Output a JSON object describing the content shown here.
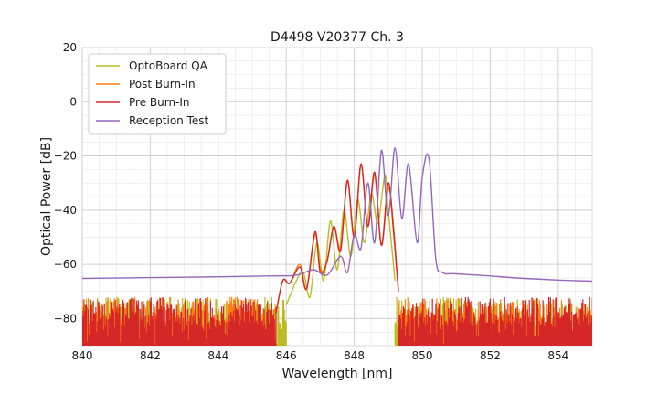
{
  "chart_data": {
    "type": "line",
    "title": "D4498 V20377 Ch. 3",
    "xlabel": "Wavelength [nm]",
    "ylabel": "Optical Power [dB]",
    "xlim": [
      840,
      855
    ],
    "ylim": [
      -90,
      20
    ],
    "xticks": [
      840,
      842,
      844,
      846,
      848,
      850,
      852,
      854
    ],
    "yticks": [
      20,
      0,
      -20,
      -40,
      -60,
      -80
    ],
    "grid": true,
    "legend_position": "top-left",
    "noise_floor": [
      -90,
      -72
    ],
    "series": [
      {
        "name": "OptoBoard QA",
        "color": "#bcbd22",
        "noise_range": [
          [
            840,
            846.0
          ],
          [
            849.2,
            855
          ]
        ],
        "points": [
          [
            846.0,
            -75
          ],
          [
            846.3,
            -66
          ],
          [
            846.5,
            -63
          ],
          [
            846.7,
            -72
          ],
          [
            846.9,
            -52
          ],
          [
            847.1,
            -66
          ],
          [
            847.3,
            -44
          ],
          [
            847.5,
            -62
          ],
          [
            847.7,
            -40
          ],
          [
            847.9,
            -57
          ],
          [
            848.1,
            -36
          ],
          [
            848.3,
            -52
          ],
          [
            848.5,
            -34
          ],
          [
            848.7,
            -45
          ],
          [
            848.9,
            -27
          ],
          [
            849.0,
            -40
          ],
          [
            849.2,
            -66
          ]
        ]
      },
      {
        "name": "Post Burn-In",
        "color": "#ff7f0e",
        "noise_range": [
          [
            840,
            845.7
          ],
          [
            849.3,
            855
          ]
        ],
        "points": [
          [
            845.7,
            -78
          ],
          [
            845.9,
            -66
          ],
          [
            846.1,
            -67
          ],
          [
            846.4,
            -60
          ],
          [
            846.6,
            -69
          ],
          [
            846.85,
            -49
          ],
          [
            847.0,
            -62
          ],
          [
            847.2,
            -59
          ],
          [
            847.4,
            -46
          ],
          [
            847.6,
            -54
          ],
          [
            847.8,
            -29
          ],
          [
            848.0,
            -50
          ],
          [
            848.2,
            -23
          ],
          [
            848.4,
            -46
          ],
          [
            848.6,
            -27
          ],
          [
            848.8,
            -53
          ],
          [
            849.0,
            -32
          ],
          [
            849.15,
            -45
          ],
          [
            849.3,
            -70
          ]
        ]
      },
      {
        "name": "Pre Burn-In",
        "color": "#d62728",
        "noise_range": [
          [
            840,
            845.7
          ],
          [
            849.3,
            855
          ]
        ],
        "points": [
          [
            845.7,
            -78
          ],
          [
            845.9,
            -66
          ],
          [
            846.1,
            -67
          ],
          [
            846.4,
            -61
          ],
          [
            846.6,
            -69
          ],
          [
            846.85,
            -48
          ],
          [
            847.0,
            -63
          ],
          [
            847.2,
            -59
          ],
          [
            847.4,
            -46
          ],
          [
            847.6,
            -55
          ],
          [
            847.8,
            -29
          ],
          [
            848.0,
            -50
          ],
          [
            848.2,
            -23
          ],
          [
            848.4,
            -46
          ],
          [
            848.6,
            -26
          ],
          [
            848.8,
            -53
          ],
          [
            849.0,
            -30
          ],
          [
            849.15,
            -47
          ],
          [
            849.3,
            -70
          ]
        ]
      },
      {
        "name": "Reception Test",
        "color": "#9467bd",
        "noise_range": [],
        "points": [
          [
            840,
            -65.2
          ],
          [
            842,
            -64.9
          ],
          [
            844,
            -64.6
          ],
          [
            845.5,
            -64.3
          ],
          [
            846.3,
            -64
          ],
          [
            846.8,
            -62
          ],
          [
            847.2,
            -64
          ],
          [
            847.6,
            -57
          ],
          [
            847.8,
            -63
          ],
          [
            848.0,
            -49
          ],
          [
            848.2,
            -54
          ],
          [
            848.4,
            -30
          ],
          [
            848.6,
            -52
          ],
          [
            848.8,
            -18
          ],
          [
            849.0,
            -42
          ],
          [
            849.2,
            -17
          ],
          [
            849.4,
            -43
          ],
          [
            849.6,
            -23
          ],
          [
            849.85,
            -52
          ],
          [
            850.0,
            -28
          ],
          [
            850.2,
            -21
          ],
          [
            850.4,
            -58
          ],
          [
            850.6,
            -63
          ],
          [
            851,
            -63.5
          ],
          [
            852,
            -64.3
          ],
          [
            853,
            -65.2
          ],
          [
            854,
            -65.8
          ],
          [
            855,
            -66.2
          ]
        ]
      }
    ]
  }
}
